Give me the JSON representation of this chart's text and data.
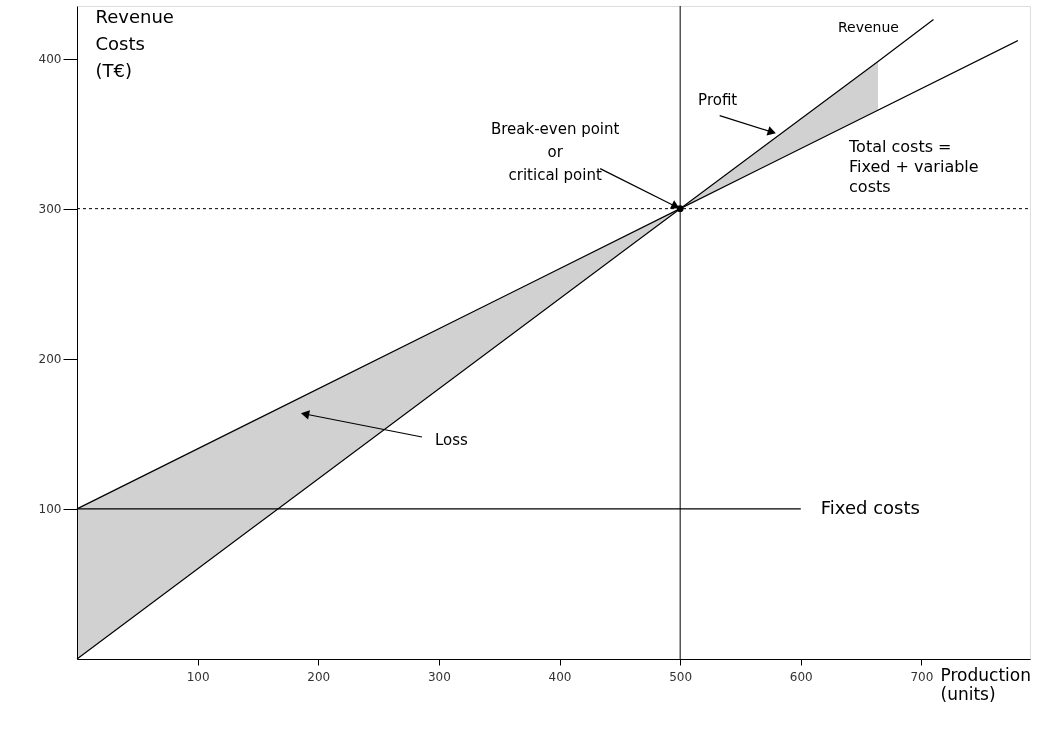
{
  "chart_data": {
    "type": "line",
    "xlabel": "Production\n(units)",
    "ylabel": "Revenue\nCosts\n(T€)",
    "xlim": [
      0,
      790
    ],
    "ylim": [
      0,
      435
    ],
    "xticks": [
      100,
      200,
      300,
      400,
      500,
      600,
      700
    ],
    "yticks": [
      100,
      200,
      300,
      400
    ],
    "grid": false,
    "marker": "none",
    "line_style": "solid",
    "series": [
      {
        "name": "Revenue",
        "color": "#000000",
        "x": [
          0,
          500,
          664,
          710
        ],
        "values": [
          0,
          300,
          398,
          426
        ],
        "lower": [
          0,
          300,
          366,
          null
        ],
        "upper": [
          100,
          300,
          398,
          null
        ]
      },
      {
        "name": "Total costs =\nFixed + variable\ncosts",
        "color": "#000000",
        "x": [
          0,
          500,
          780
        ],
        "values": [
          100,
          300,
          412
        ]
      },
      {
        "name": "Fixed costs",
        "color": "#000000",
        "x": [
          0,
          600
        ],
        "values": [
          100,
          100
        ]
      },
      {
        "type": "scatter",
        "marker": "circle",
        "color": "#000000",
        "x": [
          500
        ],
        "values": [
          300
        ]
      }
    ],
    "ref_lines": [
      {
        "axis": "y",
        "value": 300,
        "line_style": "dotted",
        "color": "#000000"
      },
      {
        "axis": "x",
        "value": 500,
        "line_style": "solid",
        "color": "#000000"
      }
    ],
    "annotations": [
      {
        "text": "Break-even point\nor\ncritical point",
        "x": 500,
        "y": 300
      },
      {
        "text": "Profit",
        "x": 580,
        "y": 350
      },
      "Loss"
    ]
  }
}
